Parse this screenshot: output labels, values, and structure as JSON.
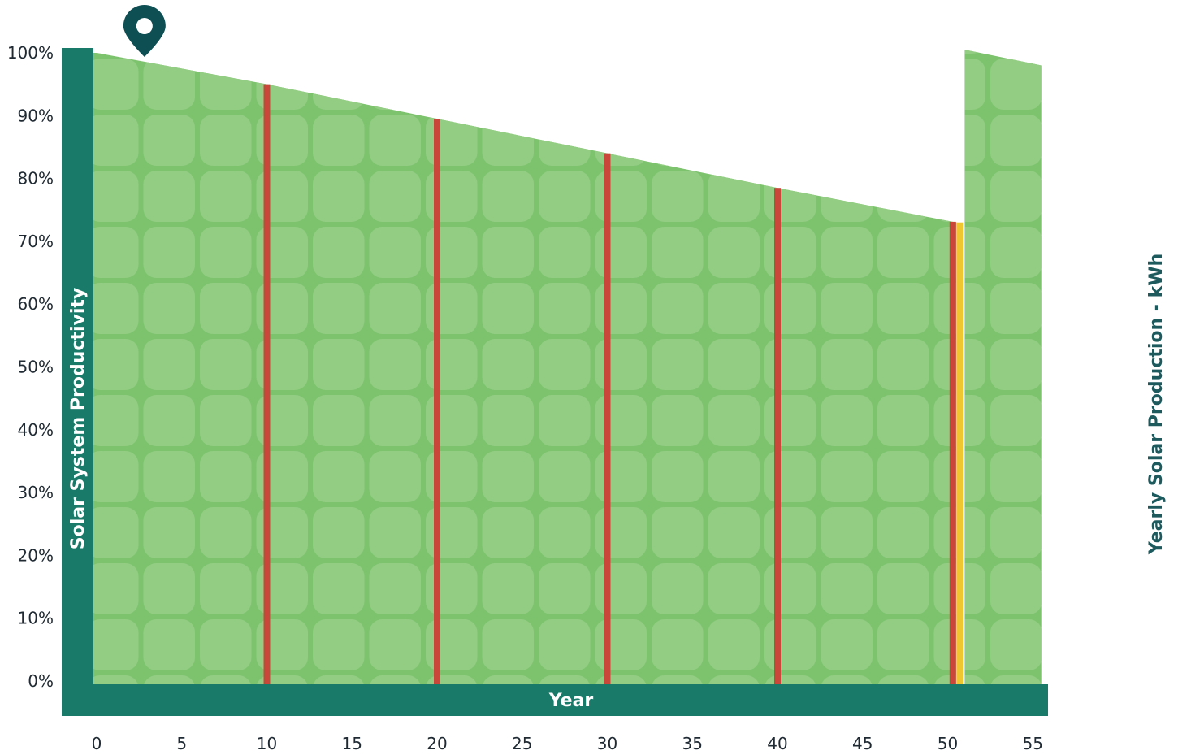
{
  "chart_data": {
    "type": "area",
    "xlabel": "Year",
    "ylabel": "Solar System Productivity",
    "y2label": "Yearly Solar Production - kWh",
    "x_ticks": [
      "0",
      "5",
      "10",
      "15",
      "20",
      "25",
      "30",
      "35",
      "40",
      "45",
      "50",
      "55"
    ],
    "y_ticks": [
      "0%",
      "10%",
      "20%",
      "30%",
      "40%",
      "50%",
      "60%",
      "70%",
      "80%",
      "90%",
      "100%"
    ],
    "xlim": [
      0,
      55
    ],
    "ylim": [
      0,
      100
    ],
    "series": [
      {
        "x": [
          0,
          10,
          20,
          30,
          40,
          50.5
        ],
        "y": [
          100,
          95,
          89.5,
          84,
          78.5,
          73
        ]
      },
      {
        "x": [
          51,
          55.5
        ],
        "y": [
          100.5,
          98
        ]
      }
    ],
    "red_markers": [
      10,
      20,
      30,
      40,
      50.3
    ],
    "yellow_marker": 50.7,
    "pin_x": 3,
    "colors": {
      "axis": "#1a7a6a",
      "area": "#7dc36e",
      "tile": "#93cd83",
      "red": "#c9473a",
      "yellow": "#f0c630",
      "pin": "#0e4f54",
      "right_label": "#1d5a5e"
    }
  }
}
